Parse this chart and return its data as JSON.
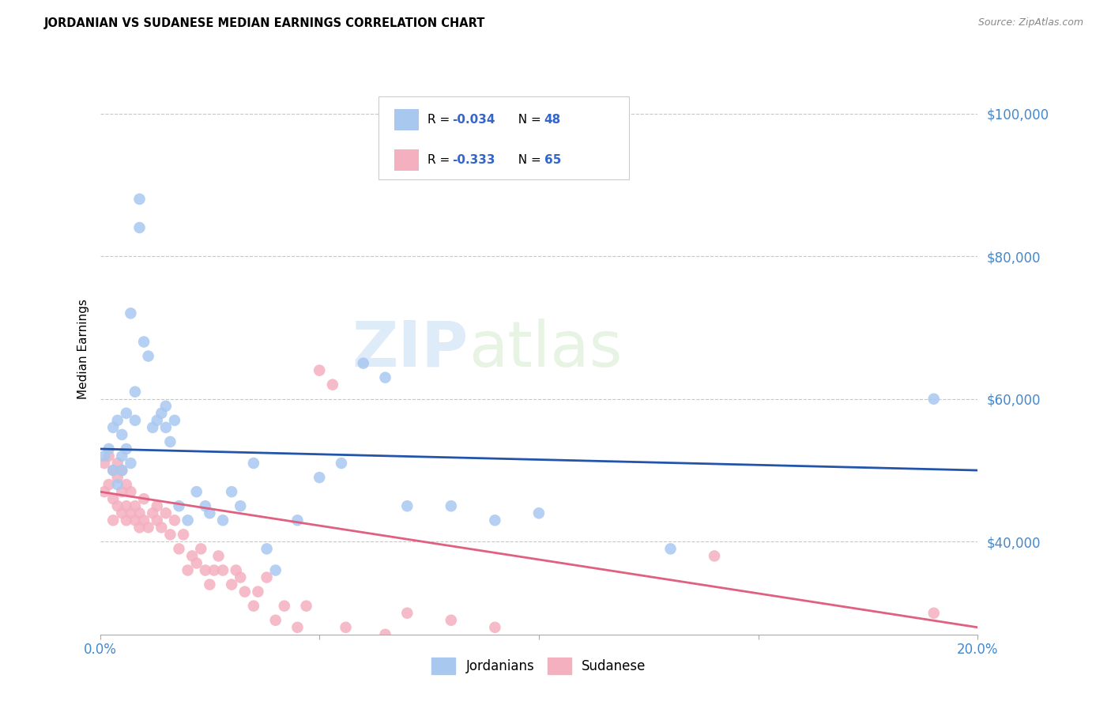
{
  "title": "JORDANIAN VS SUDANESE MEDIAN EARNINGS CORRELATION CHART",
  "source": "Source: ZipAtlas.com",
  "ylabel": "Median Earnings",
  "xlim": [
    0.0,
    0.2
  ],
  "ylim": [
    27000,
    107000
  ],
  "yticks": [
    40000,
    60000,
    80000,
    100000
  ],
  "ytick_labels": [
    "$40,000",
    "$60,000",
    "$80,000",
    "$100,000"
  ],
  "xticks": [
    0.0,
    0.05,
    0.1,
    0.15,
    0.2
  ],
  "xtick_labels": [
    "0.0%",
    "",
    "",
    "",
    "20.0%"
  ],
  "background_color": "#ffffff",
  "grid_color": "#c8c8c8",
  "legend_R1": "-0.034",
  "legend_N1": "48",
  "legend_R2": "-0.333",
  "legend_N2": "65",
  "color_jordanian": "#a8c8f0",
  "color_sudanese": "#f5b0c0",
  "color_line_jordanian": "#2255aa",
  "color_line_sudanese": "#e06080",
  "color_ytick": "#4488cc",
  "color_xtick": "#4488cc",
  "watermark_zip": "ZIP",
  "watermark_atlas": "atlas",
  "jordanian_x": [
    0.001,
    0.002,
    0.003,
    0.003,
    0.004,
    0.004,
    0.005,
    0.005,
    0.005,
    0.006,
    0.006,
    0.007,
    0.007,
    0.008,
    0.008,
    0.009,
    0.009,
    0.01,
    0.011,
    0.012,
    0.013,
    0.014,
    0.015,
    0.015,
    0.016,
    0.017,
    0.018,
    0.02,
    0.022,
    0.024,
    0.025,
    0.028,
    0.03,
    0.032,
    0.035,
    0.038,
    0.04,
    0.045,
    0.05,
    0.055,
    0.06,
    0.065,
    0.07,
    0.08,
    0.09,
    0.1,
    0.13,
    0.19
  ],
  "jordanian_y": [
    52000,
    53000,
    56000,
    50000,
    57000,
    48000,
    52000,
    55000,
    50000,
    53000,
    58000,
    51000,
    72000,
    61000,
    57000,
    84000,
    88000,
    68000,
    66000,
    56000,
    57000,
    58000,
    56000,
    59000,
    54000,
    57000,
    45000,
    43000,
    47000,
    45000,
    44000,
    43000,
    47000,
    45000,
    51000,
    39000,
    36000,
    43000,
    49000,
    51000,
    65000,
    63000,
    45000,
    45000,
    43000,
    44000,
    39000,
    60000
  ],
  "sudanese_x": [
    0.001,
    0.001,
    0.002,
    0.002,
    0.003,
    0.003,
    0.003,
    0.004,
    0.004,
    0.004,
    0.005,
    0.005,
    0.005,
    0.006,
    0.006,
    0.006,
    0.007,
    0.007,
    0.008,
    0.008,
    0.009,
    0.009,
    0.01,
    0.01,
    0.011,
    0.012,
    0.013,
    0.013,
    0.014,
    0.015,
    0.016,
    0.017,
    0.018,
    0.019,
    0.02,
    0.021,
    0.022,
    0.023,
    0.024,
    0.025,
    0.026,
    0.027,
    0.028,
    0.03,
    0.031,
    0.032,
    0.033,
    0.035,
    0.036,
    0.038,
    0.04,
    0.042,
    0.045,
    0.047,
    0.05,
    0.053,
    0.056,
    0.06,
    0.065,
    0.07,
    0.08,
    0.09,
    0.1,
    0.14,
    0.19
  ],
  "sudanese_y": [
    47000,
    51000,
    48000,
    52000,
    43000,
    46000,
    50000,
    51000,
    45000,
    49000,
    47000,
    44000,
    50000,
    43000,
    45000,
    48000,
    44000,
    47000,
    43000,
    45000,
    42000,
    44000,
    43000,
    46000,
    42000,
    44000,
    43000,
    45000,
    42000,
    44000,
    41000,
    43000,
    39000,
    41000,
    36000,
    38000,
    37000,
    39000,
    36000,
    34000,
    36000,
    38000,
    36000,
    34000,
    36000,
    35000,
    33000,
    31000,
    33000,
    35000,
    29000,
    31000,
    28000,
    31000,
    64000,
    62000,
    28000,
    26000,
    27000,
    30000,
    29000,
    28000,
    26000,
    38000,
    30000
  ],
  "jordanian_trend_x": [
    0.0,
    0.2
  ],
  "jordanian_trend_y": [
    53000,
    50000
  ],
  "sudanese_trend_x": [
    0.0,
    0.2
  ],
  "sudanese_trend_y": [
    47000,
    28000
  ]
}
